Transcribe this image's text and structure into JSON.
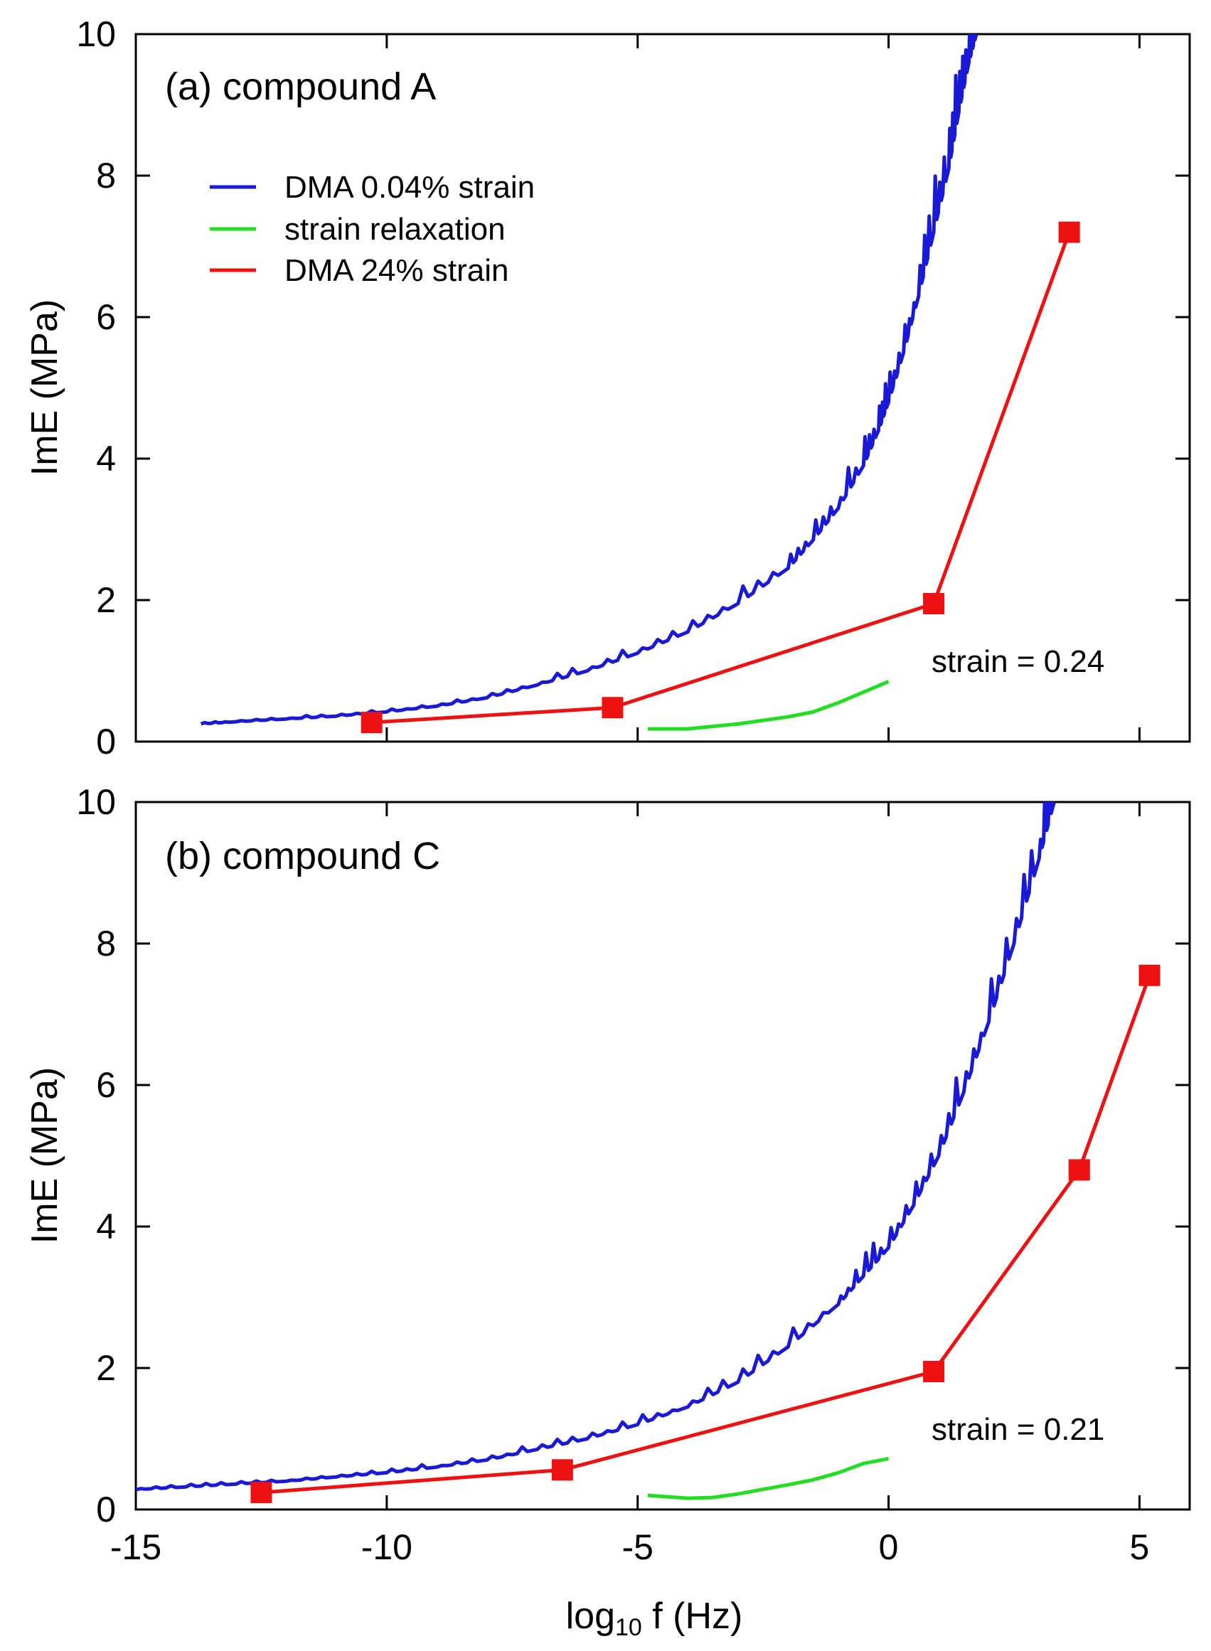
{
  "chart_data": [
    {
      "type": "line",
      "title": "(a)   compound A",
      "annotation": "strain = 0.24",
      "xlabel": "log10 f  (Hz)",
      "ylabel": "ImE  (MPa)",
      "xlim": [
        -15,
        6
      ],
      "ylim": [
        0,
        10
      ],
      "xticks": [
        -15,
        -10,
        -5,
        0,
        5
      ],
      "xtick_labels": [],
      "yticks": [
        0,
        2,
        4,
        6,
        8,
        10
      ],
      "ytick_labels": [
        "0",
        "2",
        "4",
        "6",
        "8",
        "10"
      ],
      "legend": [
        "DMA 0.04% strain",
        "strain relaxation",
        "DMA 24% strain"
      ],
      "legend_position": "top-left",
      "colors": {
        "blue": "#1a1ad6",
        "green": "#22dd22",
        "red": "#ee1111"
      },
      "series": [
        {
          "name": "DMA 0.04% strain",
          "color": "#1a1ad6",
          "x": [
            -13.7,
            -13,
            -12,
            -11,
            -10,
            -9,
            -8,
            -7,
            -6,
            -5,
            -4,
            -3,
            -2,
            -1.5,
            -1,
            -0.5,
            -0.2,
            0,
            0.3,
            0.6,
            0.9,
            1.2,
            1.4,
            1.6,
            1.75
          ],
          "y": [
            0.25,
            0.28,
            0.32,
            0.36,
            0.42,
            0.5,
            0.62,
            0.8,
            1.0,
            1.25,
            1.55,
            1.95,
            2.45,
            2.85,
            3.3,
            3.9,
            4.4,
            4.8,
            5.5,
            6.3,
            7.2,
            8.1,
            8.9,
            9.6,
            10.0
          ]
        },
        {
          "name": "strain relaxation",
          "color": "#22dd22",
          "x": [
            -4.8,
            -4,
            -3,
            -2,
            -1.5,
            -1,
            -0.5,
            0
          ],
          "y": [
            0.18,
            0.18,
            0.25,
            0.35,
            0.42,
            0.55,
            0.7,
            0.85
          ]
        },
        {
          "name": "DMA 24% strain",
          "color": "#ee1111",
          "markers": true,
          "x": [
            -10.3,
            -5.5,
            0.9,
            3.6
          ],
          "y": [
            0.27,
            0.48,
            1.95,
            7.2
          ]
        }
      ]
    },
    {
      "type": "line",
      "title": "(b)   compound C",
      "annotation": "strain = 0.21",
      "xlabel": "log10 f  (Hz)",
      "ylabel": "ImE  (MPa)",
      "xlim": [
        -15,
        6
      ],
      "ylim": [
        0,
        10
      ],
      "xticks": [
        -15,
        -10,
        -5,
        0,
        5
      ],
      "xtick_labels": [
        "-15",
        "-10",
        "-5",
        "0",
        "5"
      ],
      "yticks": [
        0,
        2,
        4,
        6,
        8,
        10
      ],
      "ytick_labels": [
        "0",
        "2",
        "4",
        "6",
        "8",
        "10"
      ],
      "series": [
        {
          "name": "DMA 0.04% strain",
          "color": "#1a1ad6",
          "x": [
            -15,
            -14,
            -13,
            -12,
            -11,
            -10,
            -9,
            -8,
            -7,
            -6,
            -5,
            -4,
            -3,
            -2,
            -1,
            -0.5,
            0,
            0.5,
            1,
            1.5,
            2,
            2.5,
            3,
            3.3
          ],
          "y": [
            0.28,
            0.32,
            0.36,
            0.4,
            0.46,
            0.52,
            0.6,
            0.7,
            0.85,
            1.0,
            1.2,
            1.45,
            1.8,
            2.3,
            2.9,
            3.3,
            3.7,
            4.3,
            5.0,
            5.9,
            6.9,
            8.0,
            9.2,
            10.0
          ]
        },
        {
          "name": "strain relaxation",
          "color": "#22dd22",
          "x": [
            -4.8,
            -4,
            -3.5,
            -3,
            -2,
            -1.5,
            -1,
            -0.5,
            0
          ],
          "y": [
            0.2,
            0.16,
            0.17,
            0.22,
            0.35,
            0.42,
            0.52,
            0.65,
            0.72
          ]
        },
        {
          "name": "DMA 24% strain",
          "color": "#ee1111",
          "markers": true,
          "x": [
            -12.5,
            -6.5,
            0.9,
            3.8,
            5.2
          ],
          "y": [
            0.24,
            0.56,
            1.95,
            4.8,
            7.55
          ]
        }
      ]
    }
  ]
}
